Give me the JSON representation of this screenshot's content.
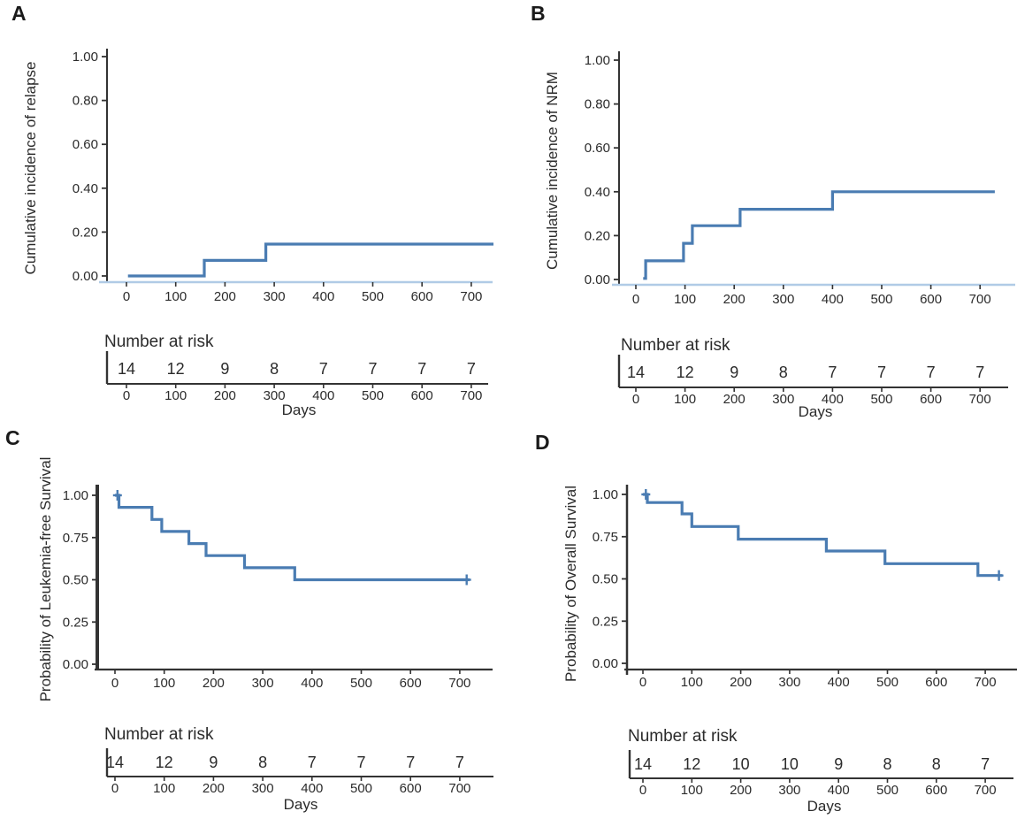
{
  "figure": {
    "background": "#ffffff",
    "description": "Four-panel survival figure: cumulative incidence of relapse (A), cumulative incidence of NRM (B), leukemia-free survival (C), overall survival (D), each with a Number at risk table"
  },
  "colors": {
    "curve": "#4a7cb2",
    "axis_dark": "#333333",
    "axis_light_blue": "#b0cbe6",
    "text": "#2b2b2b"
  },
  "chart_data": [
    {
      "panel_letter": "A",
      "type": "line",
      "subtype": "step",
      "ylabel": "Cumulative incidence of relapse",
      "xlabel": "Days",
      "x_ticks": [
        0,
        100,
        200,
        300,
        400,
        500,
        600,
        700
      ],
      "y_tick_labels": [
        "0.00",
        "0.20",
        "0.40",
        "0.60",
        "0.80",
        "1.00"
      ],
      "y_tick_values": [
        0,
        0.2,
        0.4,
        0.6,
        0.8,
        1.0
      ],
      "xlim": [
        0,
        760
      ],
      "ylim": [
        0,
        1.0
      ],
      "steps": [
        [
          3,
          0.0
        ],
        [
          158,
          0.071
        ],
        [
          283,
          0.145
        ]
      ],
      "end_time": 745,
      "censor_marks": [],
      "number_at_risk": {
        "title": "Number at risk",
        "times": [
          0,
          100,
          200,
          300,
          400,
          500,
          600,
          700
        ],
        "counts": [
          14,
          12,
          9,
          8,
          7,
          7,
          7,
          7
        ]
      }
    },
    {
      "panel_letter": "B",
      "type": "line",
      "subtype": "step",
      "ylabel": "Cumulative incidence of NRM",
      "xlabel": "Days",
      "x_ticks": [
        0,
        100,
        200,
        300,
        400,
        500,
        600,
        700
      ],
      "y_tick_labels": [
        "0.00",
        "0.20",
        "0.40",
        "0.60",
        "0.80",
        "1.00"
      ],
      "y_tick_values": [
        0,
        0.2,
        0.4,
        0.6,
        0.8,
        1.0
      ],
      "xlim": [
        0,
        760
      ],
      "ylim": [
        0,
        1.0
      ],
      "steps": [
        [
          15,
          0.005
        ],
        [
          20,
          0.085
        ],
        [
          97,
          0.165
        ],
        [
          115,
          0.245
        ],
        [
          212,
          0.32
        ],
        [
          400,
          0.4
        ]
      ],
      "end_time": 730,
      "censor_marks": [],
      "number_at_risk": {
        "title": "Number at risk",
        "times": [
          0,
          100,
          200,
          300,
          400,
          500,
          600,
          700
        ],
        "counts": [
          14,
          12,
          9,
          8,
          7,
          7,
          7,
          7
        ]
      }
    },
    {
      "panel_letter": "C",
      "type": "line",
      "subtype": "step",
      "ylabel": "Probability of Leukemia-free Survival",
      "xlabel": "Days",
      "x_ticks": [
        0,
        100,
        200,
        300,
        400,
        500,
        600,
        700
      ],
      "y_tick_labels": [
        "0.00",
        "0.25",
        "0.50",
        "0.75",
        "1.00"
      ],
      "y_tick_values": [
        0,
        0.25,
        0.5,
        0.75,
        1.0
      ],
      "xlim": [
        0,
        760
      ],
      "ylim": [
        0,
        1.0
      ],
      "steps": [
        [
          0,
          1.0
        ],
        [
          8,
          0.929
        ],
        [
          75,
          0.857
        ],
        [
          95,
          0.786
        ],
        [
          150,
          0.714
        ],
        [
          185,
          0.643
        ],
        [
          263,
          0.571
        ],
        [
          365,
          0.5
        ]
      ],
      "end_time": 720,
      "censor_marks": [
        [
          5,
          1.0
        ],
        [
          714,
          0.5
        ]
      ],
      "number_at_risk": {
        "title": "Number at risk",
        "times": [
          0,
          100,
          200,
          300,
          400,
          500,
          600,
          700
        ],
        "counts": [
          14,
          12,
          9,
          8,
          7,
          7,
          7,
          7
        ]
      }
    },
    {
      "panel_letter": "D",
      "type": "line",
      "subtype": "step",
      "ylabel": "Probability of Overall Survival",
      "xlabel": "Days",
      "x_ticks": [
        0,
        100,
        200,
        300,
        400,
        500,
        600,
        700
      ],
      "y_tick_labels": [
        "0.00",
        "0.25",
        "0.50",
        "0.75",
        "1.00"
      ],
      "y_tick_values": [
        0,
        0.25,
        0.5,
        0.75,
        1.0
      ],
      "xlim": [
        0,
        760
      ],
      "ylim": [
        0,
        1.0
      ],
      "steps": [
        [
          0,
          1.0
        ],
        [
          9,
          0.952
        ],
        [
          80,
          0.885
        ],
        [
          100,
          0.81
        ],
        [
          195,
          0.735
        ],
        [
          375,
          0.665
        ],
        [
          495,
          0.59
        ],
        [
          685,
          0.52
        ]
      ],
      "end_time": 735,
      "censor_marks": [
        [
          6,
          1.0
        ],
        [
          728,
          0.52
        ]
      ],
      "number_at_risk": {
        "title": "Number at risk",
        "times": [
          0,
          100,
          200,
          300,
          400,
          500,
          600,
          700
        ],
        "counts": [
          14,
          12,
          10,
          10,
          9,
          8,
          8,
          7
        ]
      }
    }
  ]
}
